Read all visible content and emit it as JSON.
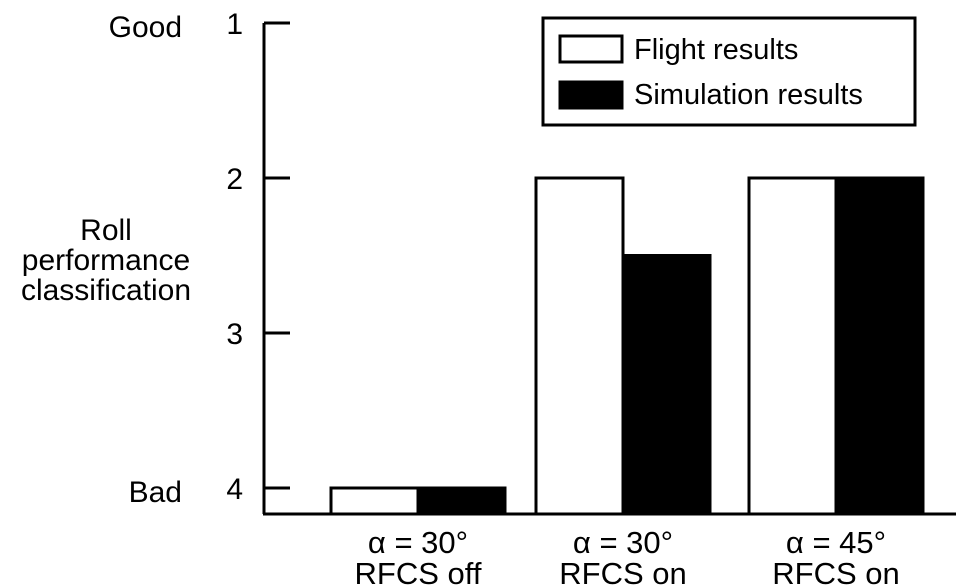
{
  "chart_data": {
    "type": "bar",
    "title": "",
    "xlabel": "",
    "ylabel": "Roll performance classification",
    "ylabel_lines": [
      "Roll",
      "performance",
      "classification"
    ],
    "y_axis": {
      "ticks": [
        1,
        2,
        3,
        4
      ],
      "tick_labels": [
        "1",
        "2",
        "3",
        "4"
      ],
      "range": [
        1,
        4.15
      ],
      "inverted": true,
      "top_descriptor": "Good",
      "bottom_descriptor": "Bad"
    },
    "categories": [
      {
        "line1": "α = 30°",
        "line2": "RFCS off"
      },
      {
        "line1": "α = 30°",
        "line2": "RFCS on"
      },
      {
        "line1": "α = 45°",
        "line2": "RFCS on"
      }
    ],
    "series": [
      {
        "name": "Flight results",
        "color": "#ffffff",
        "values": [
          4.0,
          2.0,
          2.0
        ]
      },
      {
        "name": "Simulation results",
        "color": "#000000",
        "values": [
          4.0,
          2.5,
          2.0
        ]
      }
    ],
    "grid": false,
    "legend_position": "top-right"
  }
}
